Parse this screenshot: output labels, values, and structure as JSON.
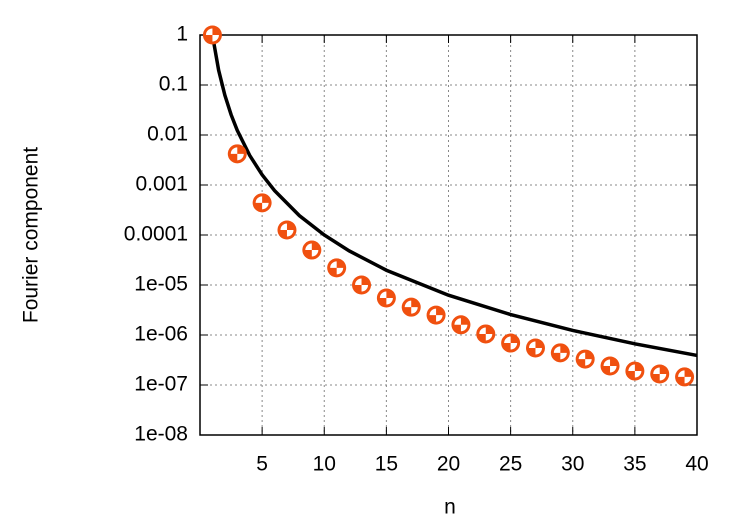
{
  "chart_data": {
    "type": "line",
    "xlabel": "n",
    "ylabel": "Fourier component",
    "xlim": [
      0,
      40
    ],
    "xticks": [
      5,
      10,
      15,
      20,
      25,
      30,
      35,
      40
    ],
    "ylim": [
      1e-08,
      1
    ],
    "log_y": true,
    "grid": true,
    "yticks": [
      1,
      0.1,
      0.01,
      0.001,
      0.0001,
      {
        "value": 1e-05,
        "label": "1e-05"
      },
      {
        "value": 1e-06,
        "label": "1e-06"
      },
      {
        "value": 1e-07,
        "label": "1e-07"
      },
      {
        "value": 1e-08,
        "label": "1e-08"
      }
    ],
    "series": [
      {
        "style": "line",
        "color": "#000000",
        "x": [
          1,
          1.5,
          2,
          2.5,
          3,
          4,
          5,
          6,
          8,
          10,
          12,
          15,
          20,
          25,
          30,
          35,
          40
        ],
        "values": [
          1,
          0.1975,
          0.0625,
          0.0256,
          0.012346,
          0.003906,
          0.0016,
          0.000772,
          0.000244,
          0.0001,
          4.82e-05,
          1.975e-05,
          6.25e-06,
          2.56e-06,
          1.235e-06,
          6.66e-07,
          3.9e-07
        ]
      },
      {
        "style": "points",
        "color": "#f0500f",
        "x": [
          1,
          3,
          5,
          7,
          9,
          11,
          13,
          15,
          17,
          19,
          21,
          23,
          25,
          27,
          29,
          31,
          33,
          35,
          37,
          39
        ],
        "values": [
          1,
          0.0042,
          0.00044,
          0.000126,
          5e-05,
          2.2e-05,
          1e-05,
          5.5e-06,
          3.6e-06,
          2.5e-06,
          1.6e-06,
          1.05e-06,
          6.9e-07,
          5.5e-07,
          4.4e-07,
          3.3e-07,
          2.4e-07,
          1.9e-07,
          1.66e-07,
          1.45e-07
        ]
      }
    ]
  }
}
